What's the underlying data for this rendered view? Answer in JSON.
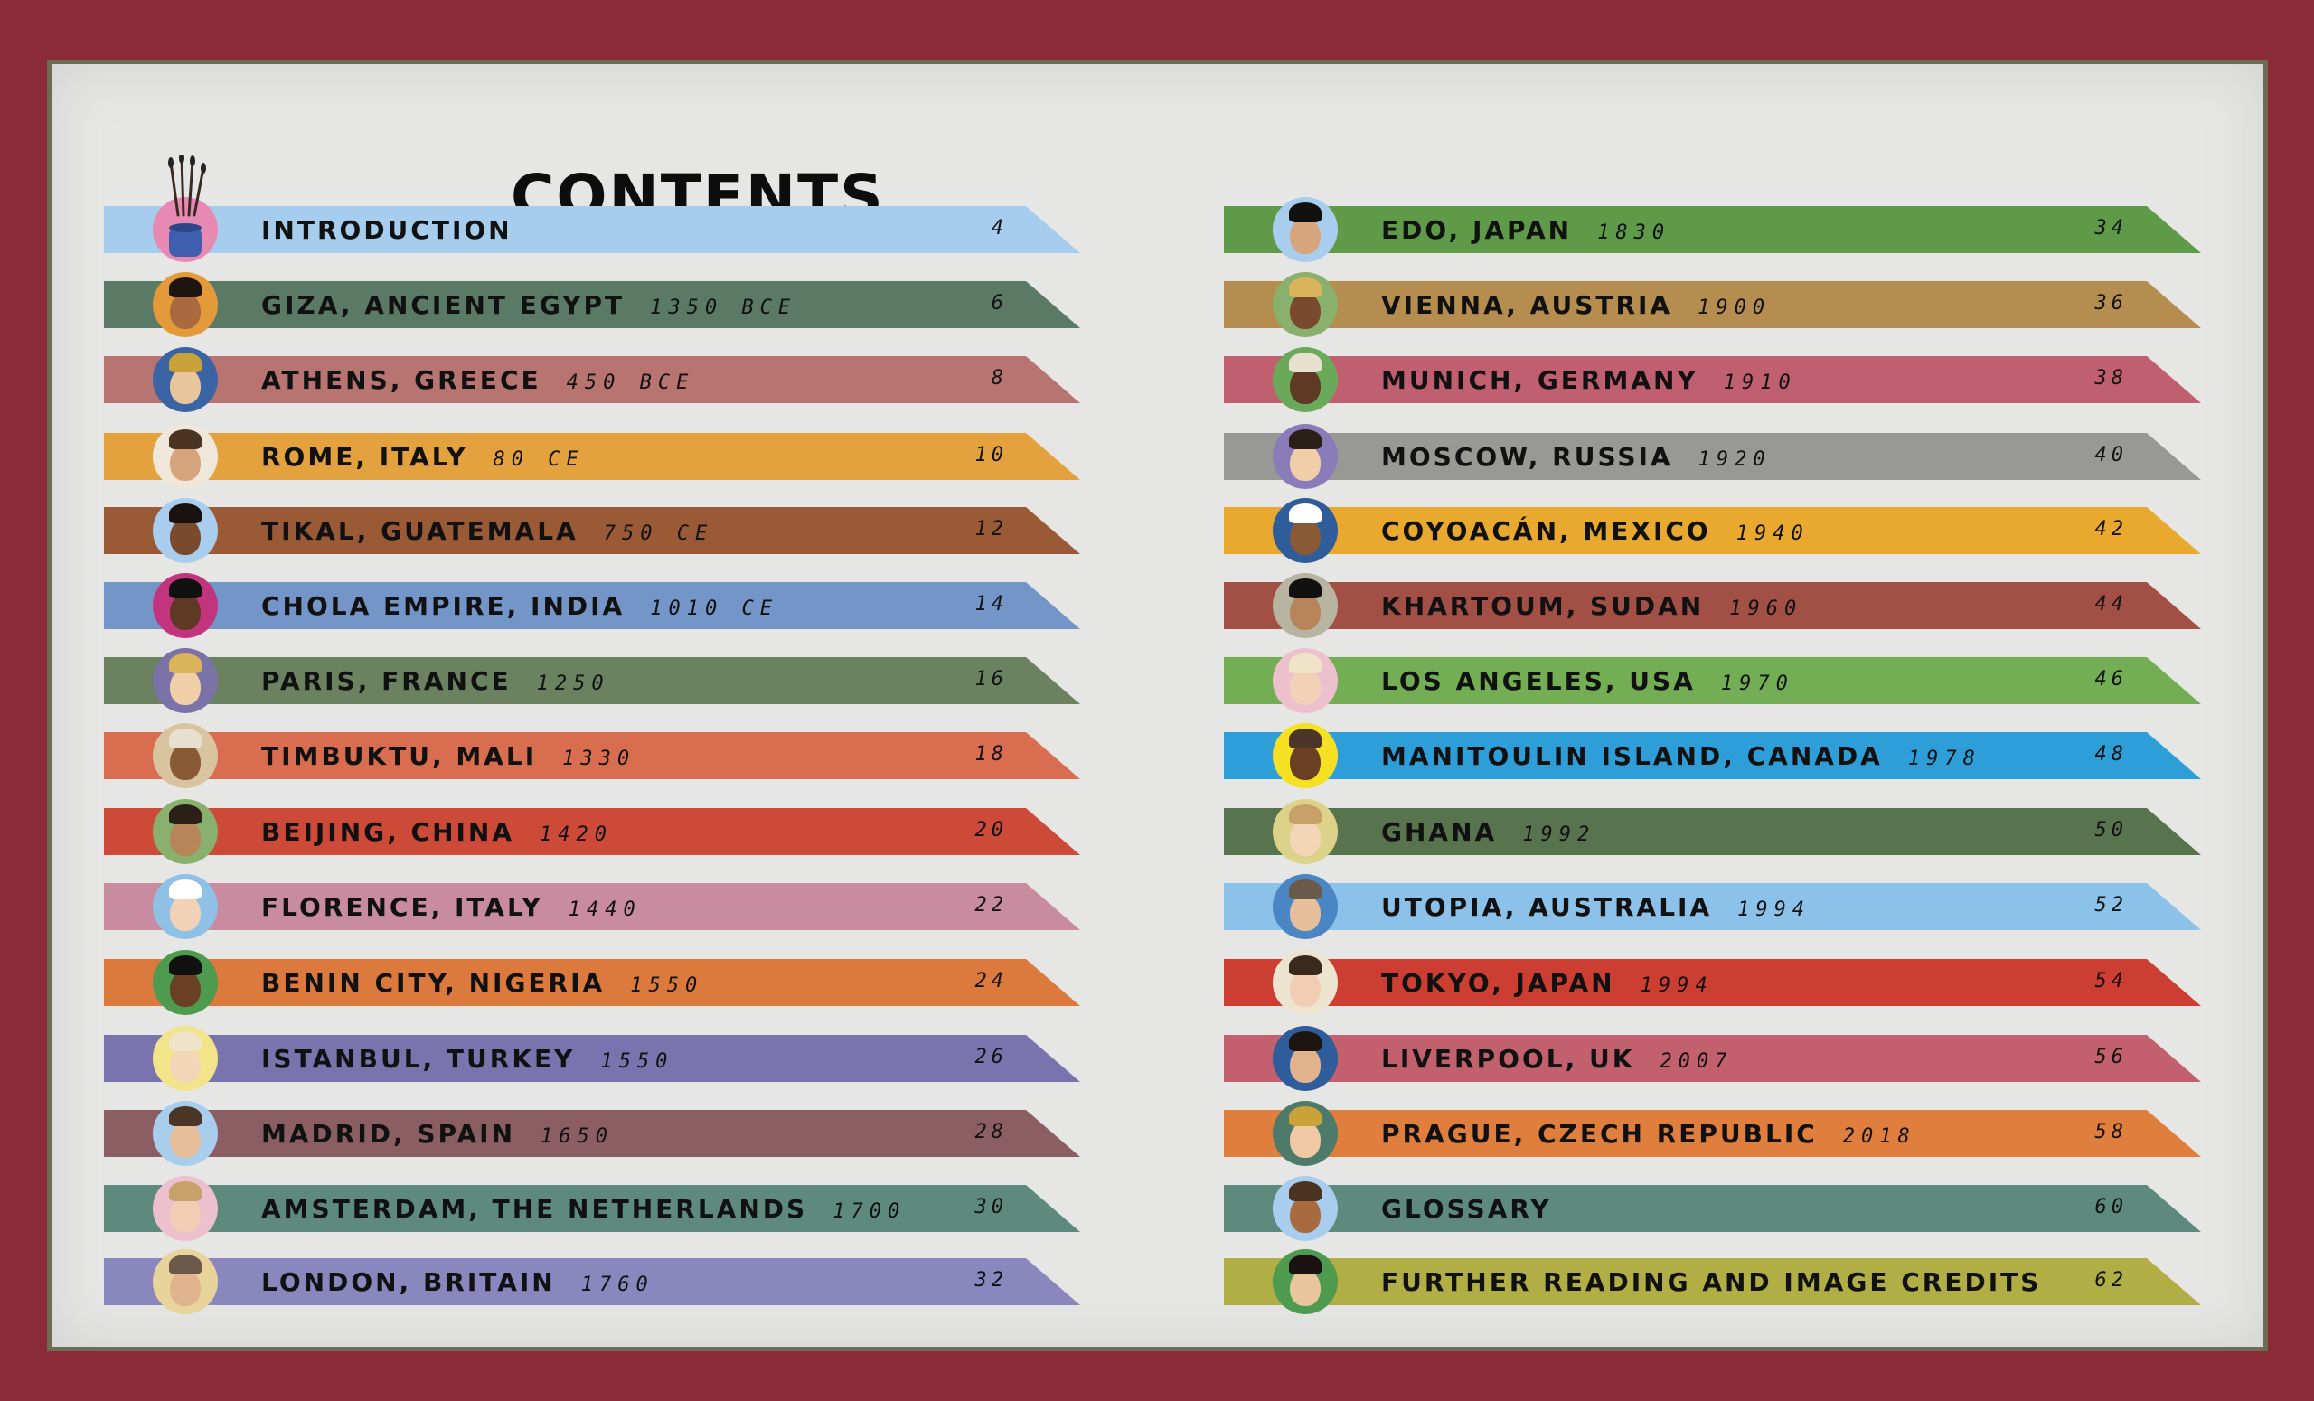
{
  "title": "CONTENTS",
  "colors": {
    "background": "#8b2b38",
    "paper": "#e6e6e4"
  },
  "left_column": [
    {
      "label": "INTRODUCTION",
      "year": "",
      "page": "4",
      "color": "#a6cdee",
      "avatar_bg": "#e889b4",
      "icon": "paintbrush-jar-icon"
    },
    {
      "label": "GIZA, ANCIENT EGYPT",
      "year": "1350 BCE",
      "page": "6",
      "color": "#5a7a66",
      "avatar_bg": "#e49a3a",
      "icon": "portrait-icon"
    },
    {
      "label": "ATHENS, GREECE",
      "year": "450 BCE",
      "page": "8",
      "color": "#b77470",
      "avatar_bg": "#3a64a4",
      "icon": "portrait-icon"
    },
    {
      "label": "ROME, ITALY",
      "year": "80 CE",
      "page": "10",
      "color": "#e4a23e",
      "avatar_bg": "#efe8da",
      "icon": "portrait-icon"
    },
    {
      "label": "TIKAL, GUATEMALA",
      "year": "750 CE",
      "page": "12",
      "color": "#9a5a36",
      "avatar_bg": "#a9cdec",
      "icon": "portrait-icon"
    },
    {
      "label": "CHOLA EMPIRE, INDIA",
      "year": "1010 CE",
      "page": "14",
      "color": "#7395c7",
      "avatar_bg": "#c2347e",
      "icon": "portrait-icon"
    },
    {
      "label": "PARIS, FRANCE",
      "year": "1250",
      "page": "16",
      "color": "#6a8260",
      "avatar_bg": "#7b72a8",
      "icon": "portrait-icon"
    },
    {
      "label": "TIMBUKTU, MALI",
      "year": "1330",
      "page": "18",
      "color": "#d96d4f",
      "avatar_bg": "#d9c4a0",
      "icon": "portrait-icon"
    },
    {
      "label": "BEIJING, CHINA",
      "year": "1420",
      "page": "20",
      "color": "#cc4a37",
      "avatar_bg": "#8ab06e",
      "icon": "portrait-icon"
    },
    {
      "label": "FLORENCE, ITALY",
      "year": "1440",
      "page": "22",
      "color": "#c98ba0",
      "avatar_bg": "#8fc0e6",
      "icon": "portrait-icon"
    },
    {
      "label": "BENIN CITY, NIGERIA",
      "year": "1550",
      "page": "24",
      "color": "#dc7a3e",
      "avatar_bg": "#4e9a4e",
      "icon": "portrait-icon"
    },
    {
      "label": "ISTANBUL, TURKEY",
      "year": "1550",
      "page": "26",
      "color": "#7a74ae",
      "avatar_bg": "#f3e48a",
      "icon": "portrait-icon"
    },
    {
      "label": "MADRID, SPAIN",
      "year": "1650",
      "page": "28",
      "color": "#8a5e62",
      "avatar_bg": "#a9cdec",
      "icon": "portrait-icon"
    },
    {
      "label": "AMSTERDAM, THE NETHERLANDS",
      "year": "1700",
      "page": "30",
      "color": "#5e8a7e",
      "avatar_bg": "#ecc0cc",
      "icon": "portrait-icon"
    },
    {
      "label": "LONDON, BRITAIN",
      "year": "1760",
      "page": "32",
      "color": "#8a86be",
      "avatar_bg": "#e8d49a",
      "icon": "portrait-icon"
    }
  ],
  "right_column": [
    {
      "label": "EDO, JAPAN",
      "year": "1830",
      "page": "34",
      "color": "#5f9a48",
      "avatar_bg": "#a9cdec",
      "icon": "portrait-icon"
    },
    {
      "label": "VIENNA, AUSTRIA",
      "year": "1900",
      "page": "36",
      "color": "#b58d4e",
      "avatar_bg": "#8ab06e",
      "icon": "portrait-icon"
    },
    {
      "label": "MUNICH, GERMANY",
      "year": "1910",
      "page": "38",
      "color": "#c05f70",
      "avatar_bg": "#6aa85a",
      "icon": "portrait-icon"
    },
    {
      "label": "MOSCOW, RUSSIA",
      "year": "1920",
      "page": "40",
      "color": "#989894",
      "avatar_bg": "#8a7cb8",
      "icon": "portrait-icon"
    },
    {
      "label": "COYOACÁN, MEXICO",
      "year": "1940",
      "page": "42",
      "color": "#e8a92e",
      "avatar_bg": "#2f5c9a",
      "icon": "portrait-icon"
    },
    {
      "label": "KHARTOUM, SUDAN",
      "year": "1960",
      "page": "44",
      "color": "#a24f45",
      "avatar_bg": "#b8b4a2",
      "icon": "portrait-icon"
    },
    {
      "label": "LOS ANGELES, USA",
      "year": "1970",
      "page": "46",
      "color": "#74ae54",
      "avatar_bg": "#ecc0cc",
      "icon": "portrait-icon"
    },
    {
      "label": "MANITOULIN ISLAND, CANADA",
      "year": "1978",
      "page": "48",
      "color": "#2d9ed8",
      "avatar_bg": "#f5e022",
      "icon": "portrait-icon"
    },
    {
      "label": "GHANA",
      "year": "1992",
      "page": "50",
      "color": "#58744e",
      "avatar_bg": "#dcd28a",
      "icon": "portrait-icon"
    },
    {
      "label": "UTOPIA, AUSTRALIA",
      "year": "1994",
      "page": "52",
      "color": "#8cc2ea",
      "avatar_bg": "#4a86c4",
      "icon": "portrait-icon"
    },
    {
      "label": "TOKYO, JAPAN",
      "year": "1994",
      "page": "54",
      "color": "#cc3e32",
      "avatar_bg": "#ede4cf",
      "icon": "portrait-icon"
    },
    {
      "label": "LIVERPOOL, UK",
      "year": "2007",
      "page": "56",
      "color": "#c2606e",
      "avatar_bg": "#2f5c9a",
      "icon": "portrait-icon"
    },
    {
      "label": "PRAGUE, CZECH REPUBLIC",
      "year": "2018",
      "page": "58",
      "color": "#e07e3e",
      "avatar_bg": "#4e7a6a",
      "icon": "portrait-icon"
    },
    {
      "label": "GLOSSARY",
      "year": "",
      "page": "60",
      "color": "#5e8a7e",
      "avatar_bg": "#a9cdec",
      "icon": "portrait-icon"
    },
    {
      "label": "FURTHER READING AND IMAGE CREDITS",
      "year": "",
      "page": "62",
      "color": "#b0ae44",
      "avatar_bg": "#4e9a4e",
      "icon": "portrait-icon"
    }
  ]
}
